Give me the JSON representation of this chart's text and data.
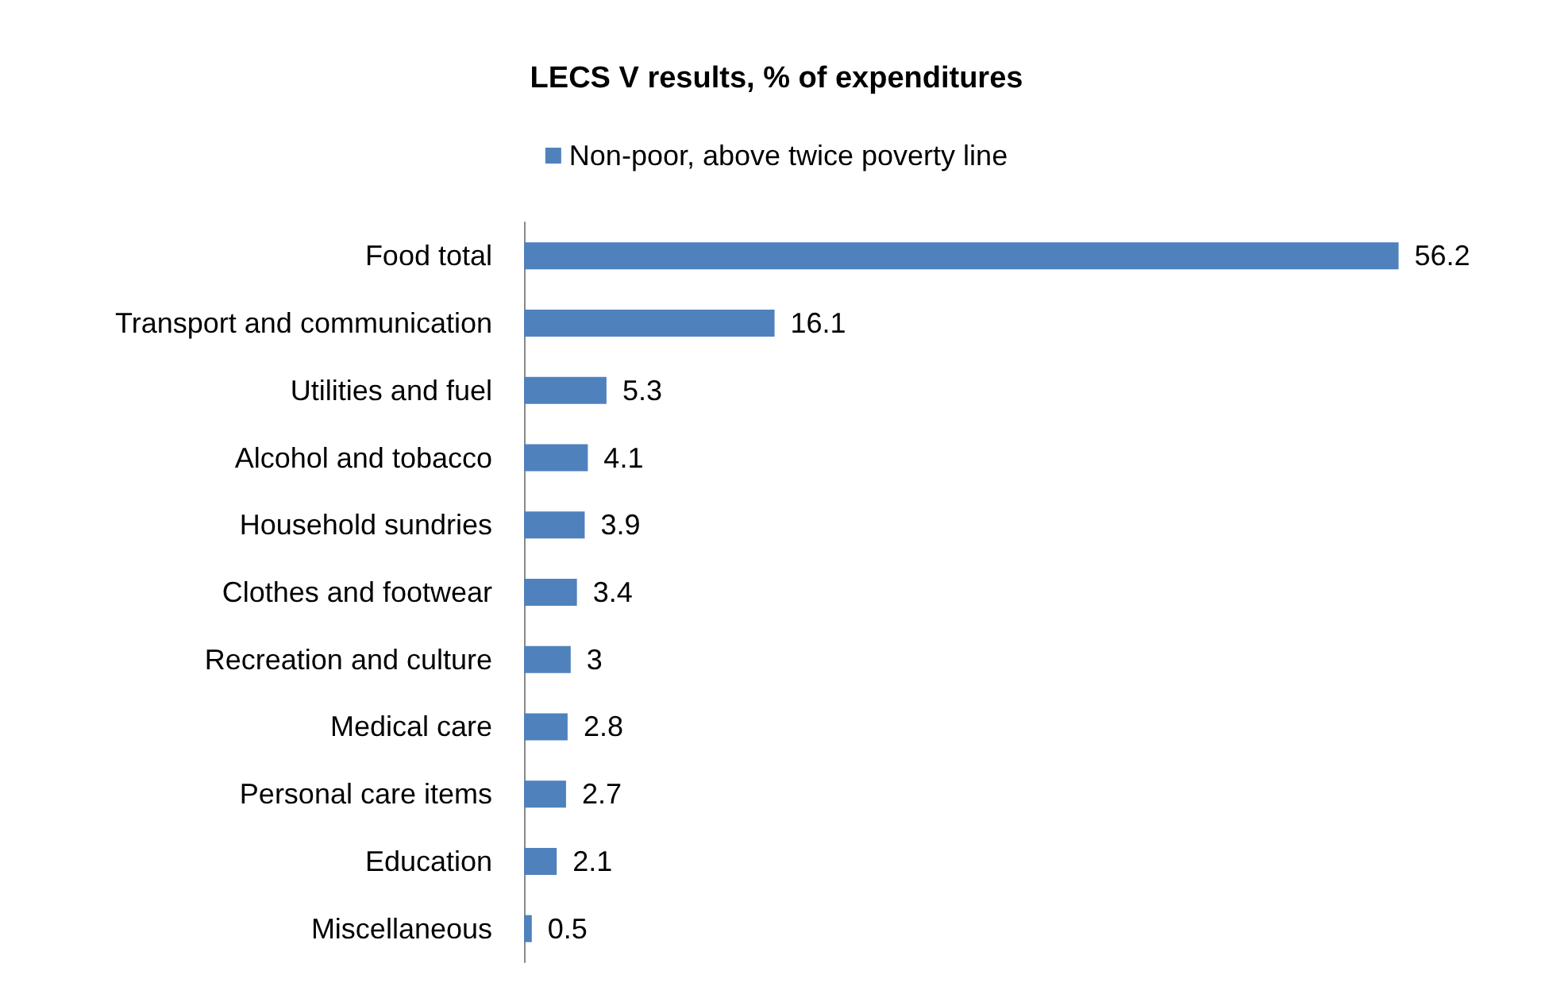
{
  "chart_data": {
    "type": "bar",
    "orientation": "horizontal",
    "title": "LECS V results, % of expenditures",
    "categories": [
      "Food total",
      "Transport and communication",
      "Utilities and fuel",
      "Alcohol and tobacco",
      "Household sundries",
      "Clothes and footwear",
      "Recreation and culture",
      "Medical care",
      "Personal care items",
      "Education",
      "Miscellaneous"
    ],
    "series": [
      {
        "name": "Non-poor, above twice poverty line",
        "color": "#4f81bd",
        "values": [
          56.2,
          16.1,
          5.3,
          4.1,
          3.9,
          3.4,
          3,
          2.8,
          2.7,
          2.1,
          0.5
        ]
      }
    ],
    "data_labels": true,
    "legend": "top"
  }
}
